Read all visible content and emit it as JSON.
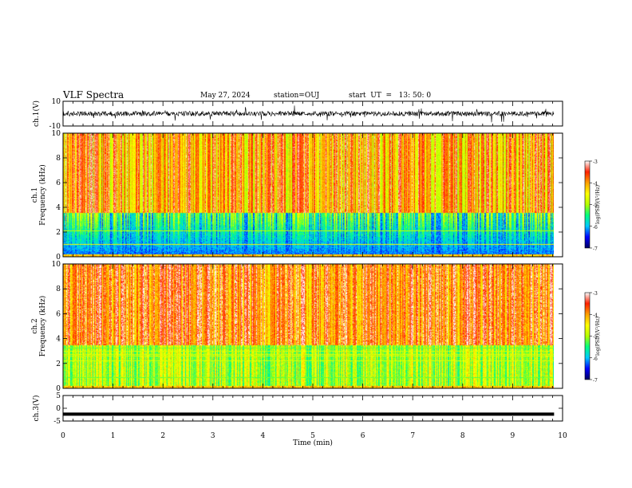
{
  "header": {
    "title": "VLF Spectra",
    "date": "May 27, 2024",
    "station": "station=OUJ",
    "start": "start  UT  =   13: 50: 0"
  },
  "chart_data": [
    {
      "type": "line",
      "panel": "ch1-waveform",
      "ylabel": "ch.1(V)",
      "ylim": [
        -10,
        10
      ],
      "yticks": [
        "10",
        "-10"
      ],
      "xlim": [
        0,
        10
      ],
      "data_extent": [
        0,
        9.83
      ],
      "baseline": 0
    },
    {
      "type": "heatmap",
      "panel": "ch1-spectrogram",
      "ylabel": "ch.1\nFrequency (kHz)",
      "ylim": [
        0,
        10
      ],
      "yticks": [
        "0",
        "2",
        "4",
        "6",
        "8",
        "10"
      ],
      "xlim": [
        0,
        10
      ],
      "data_extent": [
        0,
        9.83
      ],
      "colorbar": {
        "label": "log(PSD)(V²/Hz)",
        "range": [
          -7,
          -3
        ],
        "ticks": [
          "-3",
          "-4",
          "-5",
          "-6",
          "-7"
        ]
      }
    },
    {
      "type": "heatmap",
      "panel": "ch2-spectrogram",
      "ylabel": "ch.2\nFrequency (kHz)",
      "ylim": [
        0,
        10
      ],
      "yticks": [
        "0",
        "2",
        "4",
        "6",
        "8",
        "10"
      ],
      "xlim": [
        0,
        10
      ],
      "data_extent": [
        0,
        9.83
      ],
      "colorbar": {
        "label": "log(PSD)(V²/Hz)",
        "range": [
          -7,
          -3
        ],
        "ticks": [
          "-3",
          "-4",
          "-5",
          "-6",
          "-7"
        ]
      }
    },
    {
      "type": "line",
      "panel": "ch3-waveform",
      "ylabel": "ch.3(V)",
      "ylim": [
        -5,
        5
      ],
      "yticks": [
        "5",
        "0",
        "-5"
      ],
      "xlim": [
        0,
        10
      ],
      "data_extent": [
        0,
        9.83
      ],
      "baseline": -2.3
    }
  ],
  "xaxis": {
    "label": "Time  (min)",
    "ticks": [
      "0",
      "1",
      "2",
      "3",
      "4",
      "5",
      "6",
      "7",
      "8",
      "9",
      "10"
    ]
  },
  "colors": {
    "colormap": [
      "#000060",
      "#0000ff",
      "#00c8ff",
      "#00ff80",
      "#b4ff00",
      "#ffff00",
      "#ffa000",
      "#ff2000",
      "#ffffff"
    ]
  }
}
